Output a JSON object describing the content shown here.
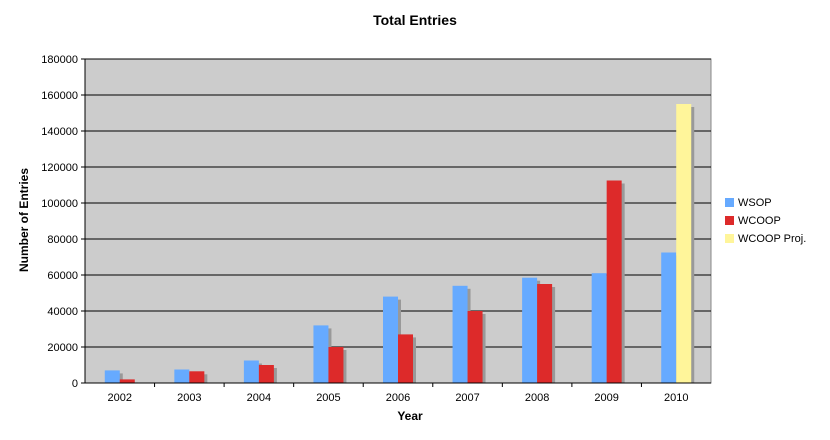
{
  "chart_data": {
    "type": "bar",
    "title": "Total Entries",
    "xlabel": "Year",
    "ylabel": "Number of Entries",
    "categories": [
      "2002",
      "2003",
      "2004",
      "2005",
      "2006",
      "2007",
      "2008",
      "2009",
      "2010"
    ],
    "ylim": [
      0,
      180000
    ],
    "yticks": [
      "0",
      "20000",
      "40000",
      "60000",
      "80000",
      "100000",
      "120000",
      "140000",
      "160000",
      "180000"
    ],
    "grid": true,
    "legend_position": "right",
    "series": [
      {
        "name": "WSOP",
        "color": "#66aaff",
        "values": [
          7000,
          7500,
          12500,
          32000,
          48000,
          54000,
          58500,
          61000,
          72500
        ]
      },
      {
        "name": "WCOOP",
        "color": "#dd2a2a",
        "values": [
          2000,
          6500,
          10000,
          20000,
          27000,
          40000,
          55000,
          112500,
          null
        ]
      },
      {
        "name": "WCOOP Proj.",
        "color": "#fff59a",
        "values": [
          null,
          null,
          null,
          null,
          null,
          null,
          null,
          null,
          155000
        ]
      }
    ]
  }
}
